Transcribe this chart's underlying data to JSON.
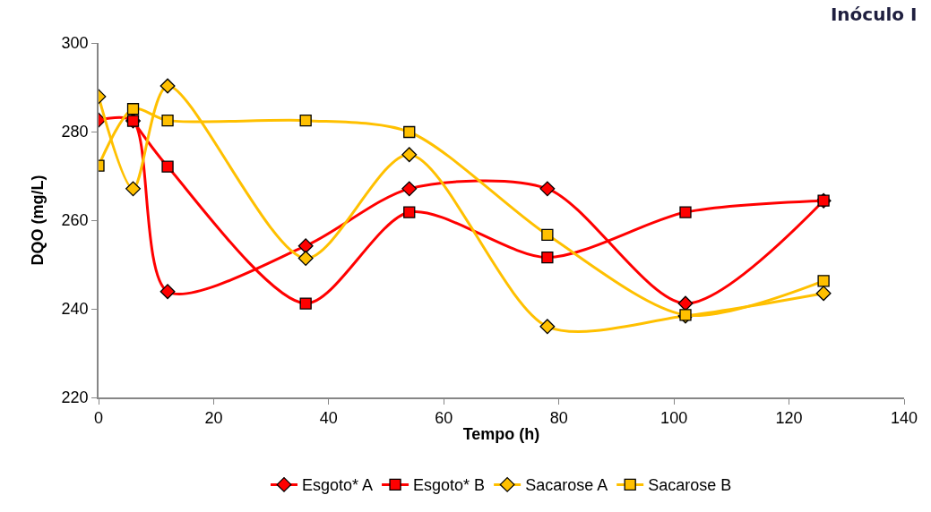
{
  "chart_data": {
    "type": "line",
    "title": "Inóculo I",
    "xlabel": "Tempo (h)",
    "ylabel": "DQO (mg/L)",
    "x": [
      0,
      6,
      12,
      36,
      54,
      78,
      102,
      126
    ],
    "series": [
      {
        "name": "Esgoto* A",
        "color": "#ff0000",
        "marker": "diamond",
        "values": [
          282.6,
          282.4,
          243.9,
          254.2,
          267.1,
          267.1,
          241.2,
          264.4
        ]
      },
      {
        "name": "Esgoto* B",
        "color": "#ff0000",
        "marker": "square",
        "values": [
          null,
          282.4,
          272.1,
          241.2,
          261.8,
          251.6,
          261.8,
          264.4
        ]
      },
      {
        "name": "Sacarose A",
        "color": "#ffc000",
        "marker": "diamond",
        "values": [
          287.9,
          267.1,
          290.3,
          251.4,
          274.8,
          236.0,
          238.4,
          243.5
        ]
      },
      {
        "name": "Sacarose B",
        "color": "#ffc000",
        "marker": "square",
        "values": [
          272.3,
          285.1,
          282.5,
          282.5,
          279.9,
          256.7,
          238.6,
          246.3
        ]
      }
    ],
    "xlim": [
      0,
      140
    ],
    "xticks": [
      0,
      20,
      40,
      60,
      80,
      100,
      120,
      140
    ],
    "ylim": [
      220,
      300
    ],
    "yticks": [
      220,
      240,
      260,
      280,
      300
    ],
    "legend": "bottom",
    "line_style": "solid"
  }
}
